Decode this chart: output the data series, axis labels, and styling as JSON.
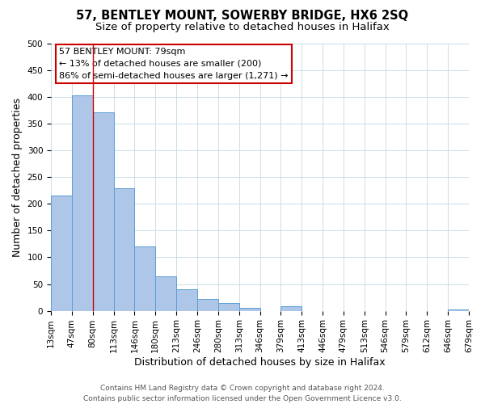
{
  "title": "57, BENTLEY MOUNT, SOWERBY BRIDGE, HX6 2SQ",
  "subtitle": "Size of property relative to detached houses in Halifax",
  "xlabel": "Distribution of detached houses by size in Halifax",
  "ylabel": "Number of detached properties",
  "bin_labels": [
    "13sqm",
    "47sqm",
    "80sqm",
    "113sqm",
    "146sqm",
    "180sqm",
    "213sqm",
    "246sqm",
    "280sqm",
    "313sqm",
    "346sqm",
    "379sqm",
    "413sqm",
    "446sqm",
    "479sqm",
    "513sqm",
    "546sqm",
    "579sqm",
    "612sqm",
    "646sqm",
    "679sqm"
  ],
  "bar_heights": [
    215,
    403,
    372,
    230,
    120,
    65,
    40,
    22,
    15,
    5,
    0,
    8,
    0,
    0,
    0,
    0,
    0,
    0,
    0,
    3
  ],
  "bar_color": "#aec6e8",
  "bar_edge_color": "#5a9fd4",
  "vline_x": 2,
  "vline_color": "#cc0000",
  "annotation_line0": "57 BENTLEY MOUNT: 79sqm",
  "annotation_line1": "← 13% of detached houses are smaller (200)",
  "annotation_line2": "86% of semi-detached houses are larger (1,271) →",
  "annotation_box_color": "#cc0000",
  "ylim": [
    0,
    500
  ],
  "yticks": [
    0,
    50,
    100,
    150,
    200,
    250,
    300,
    350,
    400,
    450,
    500
  ],
  "footer1": "Contains HM Land Registry data © Crown copyright and database right 2024.",
  "footer2": "Contains public sector information licensed under the Open Government Licence v3.0.",
  "background_color": "#ffffff",
  "grid_color": "#ccdde8",
  "title_fontsize": 10.5,
  "subtitle_fontsize": 9.5,
  "axis_label_fontsize": 9,
  "tick_fontsize": 7.5,
  "annotation_fontsize": 8,
  "footer_fontsize": 6.5
}
